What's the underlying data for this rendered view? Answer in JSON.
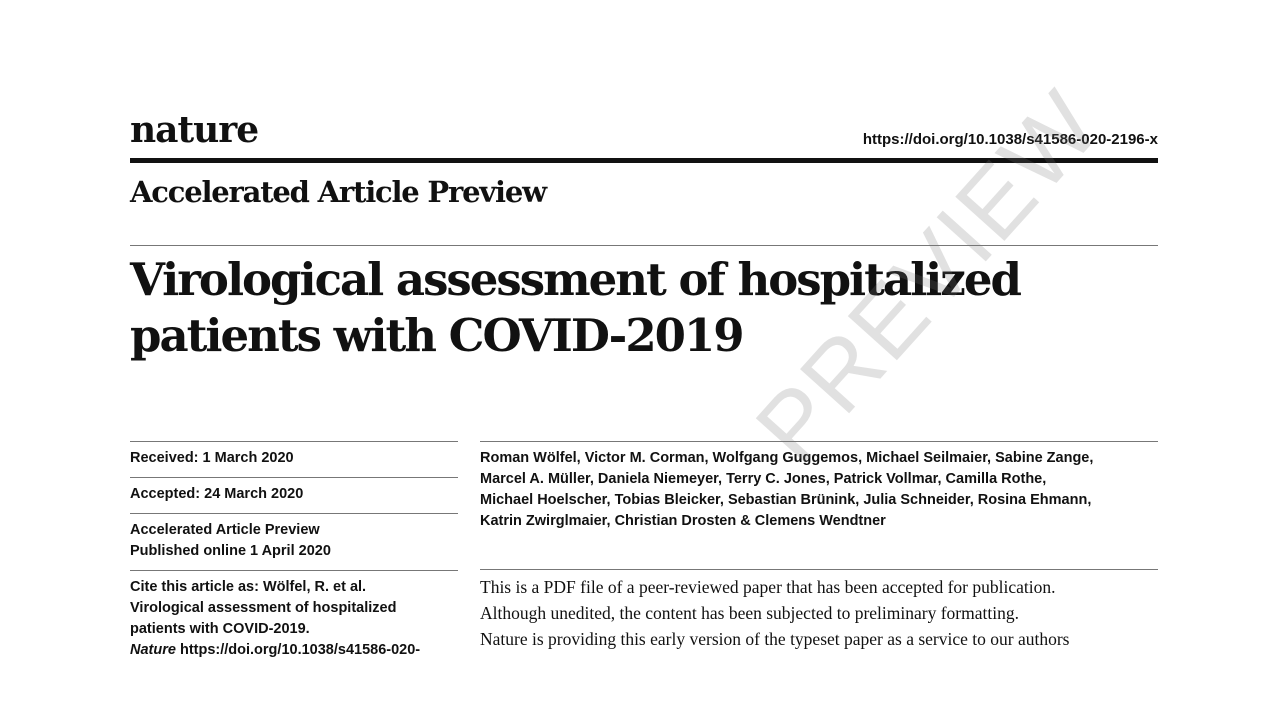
{
  "header": {
    "logo_text": "nature",
    "doi": "https://doi.org/10.1038/s41586-020-2196-x",
    "section": "Accelerated Article Preview"
  },
  "article": {
    "title_line1": "Virological assessment of hospitalized",
    "title_line2": "patients with COVID-2019",
    "authors": [
      "Roman Wölfel, Victor M. Corman, Wolfgang Guggemos, Michael Seilmaier, Sabine Zange,",
      "Marcel A. Müller, Daniela Niemeyer, Terry C. Jones, Patrick Vollmar, Camilla Rothe,",
      "Michael Hoelscher, Tobias Bleicker, Sebastian Brünink, Julia Schneider, Rosina Ehmann,",
      "Katrin Zwirglmaier, Christian Drosten & Clemens Wendtner"
    ],
    "notice_lines": [
      "This is a PDF file of a peer-reviewed paper that has been accepted for publication.",
      "Although unedited, the content has been subjected to preliminary formatting.",
      "Nature is providing this early version of the typeset paper as a service to our authors"
    ]
  },
  "meta": {
    "received": "Received: 1 March 2020",
    "accepted": "Accepted: 24 March 2020",
    "aap_label": "Accelerated Article Preview",
    "published": "Published online 1 April 2020",
    "cite_lines": [
      "Cite this article as: Wölfel, R. et al.",
      "Virological assessment of hospitalized",
      "patients with COVID-2019."
    ],
    "cite_journal": "Nature",
    "cite_doi": "https://doi.org/10.1038/s41586-020-"
  },
  "watermark": {
    "text": "PREVIEW"
  }
}
